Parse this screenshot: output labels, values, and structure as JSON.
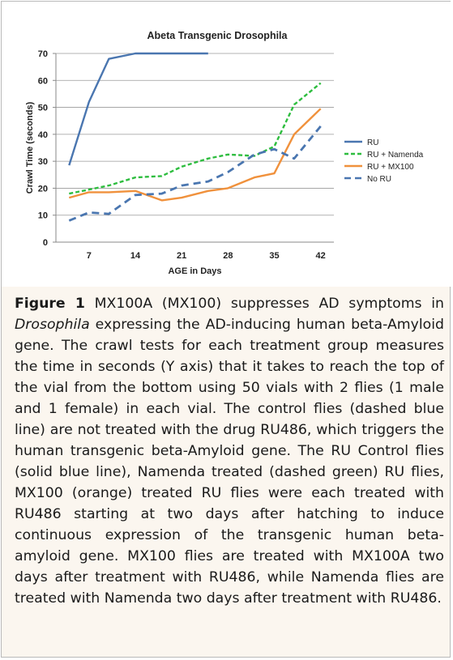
{
  "chart_data": {
    "type": "line",
    "title": "Abeta Transgenic Drosophila",
    "xlabel": "AGE in Days",
    "ylabel": "Crawl Time (seconds)",
    "xlim": [
      2,
      44
    ],
    "ylim": [
      0,
      70
    ],
    "xticks": [
      "7",
      "14",
      "21",
      "28",
      "35",
      "42"
    ],
    "xtick_values": [
      7,
      14,
      21,
      28,
      35,
      42
    ],
    "yticks": [
      "0",
      "10",
      "20",
      "30",
      "40",
      "50",
      "60",
      "70"
    ],
    "ytick_values": [
      0,
      10,
      20,
      30,
      40,
      50,
      60,
      70
    ],
    "grid": true,
    "legend_position": "right",
    "series": [
      {
        "name": "RU",
        "color": "#4a76b0",
        "style": "solid",
        "x": [
          4,
          7,
          10,
          14,
          18,
          21,
          25
        ],
        "y": [
          28.5,
          52,
          68,
          70,
          70,
          70,
          70
        ]
      },
      {
        "name": "RU + Namenda",
        "color": "#2ebd3f",
        "style": "dashed",
        "x": [
          4,
          7,
          10,
          14,
          18,
          21,
          25,
          28,
          32,
          35,
          38,
          42
        ],
        "y": [
          18,
          19.5,
          21,
          24,
          24.5,
          28,
          31,
          32.5,
          32,
          35.5,
          51,
          59
        ]
      },
      {
        "name": "RU + MX100",
        "color": "#f0913c",
        "style": "solid",
        "x": [
          4,
          7,
          10,
          14,
          18,
          21,
          25,
          28,
          32,
          35,
          38,
          42
        ],
        "y": [
          16.5,
          18.5,
          18.5,
          19,
          15.5,
          16.5,
          19,
          20,
          24,
          25.5,
          40,
          49.5
        ]
      },
      {
        "name": "No RU",
        "color": "#4a76b0",
        "style": "dashed",
        "x": [
          4,
          7,
          10,
          14,
          18,
          21,
          25,
          28,
          32,
          35,
          38,
          42
        ],
        "y": [
          8,
          11,
          10.5,
          17.5,
          18,
          21,
          22.5,
          26,
          32.5,
          34.5,
          31,
          43
        ]
      }
    ]
  },
  "caption": {
    "label": "Figure 1",
    "part1": " MX100A (MX100) suppresses AD symptoms in ",
    "italic": "Drosophila",
    "part2": " expressing the AD-inducing human beta-Amyloid gene. The crawl tests for each treatment group measures the time in seconds (Y axis) that it takes to reach the top of the vial from the bottom using 50 vials with 2 flies (1 male and 1 female) in each vial. The control flies (dashed blue line) are not treated with the drug RU486, which triggers the human transgenic beta-Amyloid gene. The RU Control flies (solid blue line), Namenda treated (dashed green) RU flies, MX100 (orange) treated RU flies were each treated with RU486 starting at two days after hatching to induce continuous expression of the transgenic human beta-amyloid gene. MX100 flies are treated with MX100A two days after treatment with RU486, while Namenda flies are treated with Namenda two days after treatment with RU486."
  }
}
